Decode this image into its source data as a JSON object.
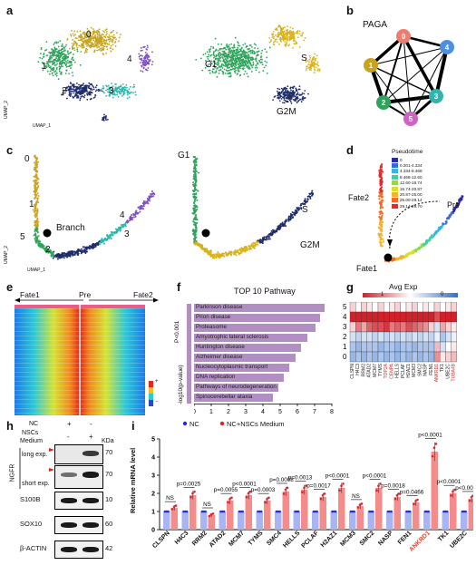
{
  "panels": {
    "a": "a",
    "b": "b",
    "c": "c",
    "d": "d",
    "e": "e",
    "f": "f",
    "g": "g",
    "h": "h",
    "i": "i"
  },
  "umap": {
    "xlabel": "UMAP_1",
    "ylabel": "UMAP_2",
    "clusters": [
      "0",
      "1",
      "2",
      "3",
      "4"
    ],
    "phases": [
      "G1",
      "S",
      "G2M"
    ]
  },
  "paga": {
    "title": "PAGA",
    "nodes": [
      "0",
      "1",
      "2",
      "3",
      "4",
      "5"
    ],
    "colors": [
      "#f07b6f",
      "#c8a31d",
      "#2fa35b",
      "#2fb5ac",
      "#4d8fe0",
      "#cf62c2"
    ]
  },
  "traj": {
    "xlabel": "UMAP_1",
    "ylabel": "UMAP_2",
    "labels": [
      "0",
      "1",
      "4",
      "5",
      "2",
      "3"
    ],
    "branch": "Branch",
    "phases": [
      "G1",
      "S",
      "G2M"
    ]
  },
  "pseudo": {
    "title": "Pseudotime",
    "legend": [
      "0",
      "0.201-4.334",
      "4.334-8.468",
      "8.468-12.60",
      "12.60-16.74",
      "16.74-20.87",
      "20.87-25.00",
      "25.00-29.14",
      "29.14-29.70"
    ],
    "colors": [
      "#2a2aa8",
      "#3a6ad6",
      "#31b6e6",
      "#3fd0a8",
      "#8fdc3c",
      "#d8e02a",
      "#f5b428",
      "#f36b22",
      "#e02c2c"
    ],
    "fate1": "Fate1",
    "fate2": "Fate2",
    "pre": "Pre"
  },
  "heat_e": {
    "left": "Fate1",
    "center": "Pre",
    "right": "Fate2",
    "scale_max": "+",
    "scale_min": "-"
  },
  "pathway": {
    "title": "TOP 10 Pathway",
    "ylabel": "-log10(p-value)",
    "pcut": "P<0.001",
    "xticks": [
      "0",
      "1",
      "2",
      "3",
      "4",
      "5",
      "6",
      "7",
      "8"
    ],
    "items": [
      {
        "name": "Parkinson disease",
        "v": 7.6
      },
      {
        "name": "Prion disease",
        "v": 7.3
      },
      {
        "name": "Proteasome",
        "v": 7.05
      },
      {
        "name": "Amyotrophic lateral sclerosis",
        "v": 6.6
      },
      {
        "name": "Huntington disease",
        "v": 6.2
      },
      {
        "name": "Alzheimer disease",
        "v": 5.9
      },
      {
        "name": "Nucleocytoplasmic transport",
        "v": 5.5
      },
      {
        "name": "DNA replication",
        "v": 5.2
      },
      {
        "name": "Pathways of neurodegeneration",
        "v": 4.9
      },
      {
        "name": "Spinocerebellar ataxia",
        "v": 4.6
      }
    ]
  },
  "heat_g": {
    "title": "Avg Exp",
    "max": "1",
    "min": "0",
    "rows": [
      "5",
      "4",
      "3",
      "2",
      "1",
      "0"
    ],
    "genes": [
      "CLSPN",
      "H4C3",
      "RRM2",
      "ATAD2",
      "MCM7",
      "TYMS",
      "TOP2A",
      "CENPA",
      "HELLS",
      "PCLAF",
      "H2AZ1",
      "MCM3",
      "SMC2",
      "NASP",
      "FEN1",
      "ANKRD1",
      "TK1",
      "UBE2C",
      "TUBA4B"
    ]
  },
  "wb": {
    "nc": "NC",
    "nscs": "NSCs",
    "medium": "Medium",
    "kda": "KDa",
    "plus": "+",
    "minus": "-",
    "ngfr": "NGFR",
    "long": "long exp.",
    "short": "short exp.",
    "rows": [
      {
        "name": "S100B",
        "kda": "10"
      },
      {
        "name": "SOX10",
        "kda": "60"
      },
      {
        "name": "β-ACTIN",
        "kda": "42"
      }
    ],
    "k70a": "70",
    "k70b": "70"
  },
  "bar_chart": {
    "legend_nc": "NC",
    "legend_nsc": "NC+NSCs Medium",
    "ylabel": "Relative mRNA level",
    "yticks": [
      "0",
      "1",
      "2",
      "3",
      "4",
      "5"
    ]
  },
  "chart_data": {
    "type": "bar",
    "title": "",
    "ylabel": "Relative mRNA level",
    "ylim": [
      0,
      5
    ],
    "categories": [
      "CLSPN",
      "H4C3",
      "RRM2",
      "ATAD2",
      "MCM7",
      "TYMS",
      "SMC4",
      "HELLS",
      "PCLAF",
      "H2AZ1",
      "MCM3",
      "SMC2",
      "NASP",
      "FEN1",
      "ANKRD1",
      "TK1",
      "UBE2C"
    ],
    "series": [
      {
        "name": "NC",
        "values": [
          1,
          1,
          1,
          1,
          1,
          1,
          1,
          1,
          1,
          1,
          1,
          1,
          1,
          1,
          1,
          1,
          1
        ]
      },
      {
        "name": "NC+NSCs Medium",
        "values": [
          1.2,
          1.9,
          0.8,
          1.6,
          1.9,
          1.6,
          2.1,
          2.2,
          1.8,
          2.3,
          1.3,
          2.3,
          1.8,
          1.5,
          4.3,
          2.0,
          1.7
        ]
      }
    ],
    "pvalues": [
      "NS",
      "p=0.0025",
      "NS",
      "p=0.0055",
      "p<0.0001",
      "p=0.0003",
      "p=0.0008",
      "p=0.0013",
      "p=0.0017",
      "p<0.0001",
      "NS",
      "p<0.0001",
      "p=0.0018",
      "p=0.0466",
      "p<0.0001",
      "p<0.0001",
      "p<0.0001"
    ],
    "highlight": [
      "ANKRD1"
    ],
    "colors": {
      "nc": "#1f2ee0",
      "nsc": "#f48c8c",
      "nsc_dot": "#e0202a",
      "highlight": "#e8452a"
    }
  }
}
